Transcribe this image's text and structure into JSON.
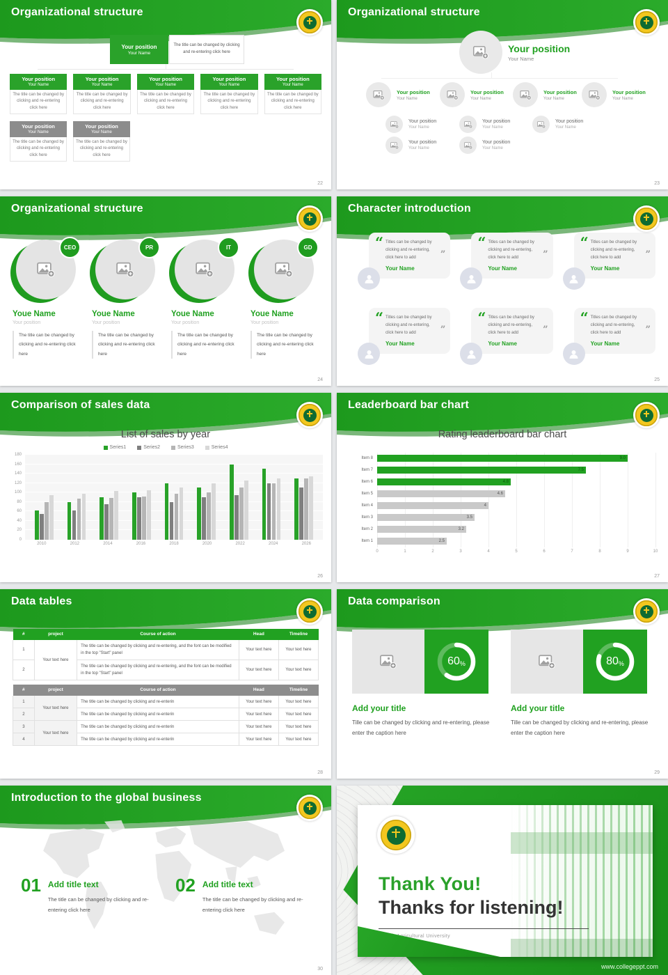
{
  "strings": {
    "your_position": "Your position",
    "your_name": "Your Name",
    "youe_name": "Youe Name",
    "org_body": "The title can be changed by clicking and re-entering click here",
    "quote_open": "“",
    "quote_close": "”",
    "quote_text": "Titles can be changed by clicking and re-entering, click here to add",
    "your_text_here": "Your text here",
    "course_long": "The title can be changed by clicking and re-entering, and the font can be modified in the top \"Start\" panel",
    "course_short": "The title can be changed by clicking and re-enterin",
    "caption29": "Tille can be changed by clicking and re-entering, please enter the caption here",
    "add_your_title": "Add your title",
    "add_title_text": "Add title text",
    "intro_caption": "The title can be changed by clicking and re-entering click here",
    "percent_sign": "%"
  },
  "slides": {
    "s22": {
      "title": "Organizational structure",
      "page": "22"
    },
    "s23": {
      "title": "Organizational structure",
      "page": "23"
    },
    "s24": {
      "title": "Organizational structure",
      "page": "24",
      "badges": [
        "CEO",
        "PR",
        "IT",
        "GD"
      ]
    },
    "s25": {
      "title": "Character introduction",
      "page": "25"
    },
    "s26": {
      "title": "Comparison of sales data",
      "page": "26"
    },
    "s27": {
      "title": "Leaderboard bar chart",
      "page": "27"
    },
    "s28": {
      "title": "Data tables",
      "page": "28",
      "headers": [
        "#",
        "project",
        "Course of action",
        "Head",
        "Timeline"
      ],
      "row_nums1": [
        "1",
        "2"
      ],
      "row_nums2": [
        "1",
        "2",
        "3",
        "4"
      ]
    },
    "s29": {
      "title": "Data comparison",
      "page": "29",
      "cards": [
        {
          "value": "60"
        },
        {
          "value": "80"
        }
      ]
    },
    "s30": {
      "title": "Introduction to the global business",
      "page": "30",
      "nums": [
        "01",
        "02"
      ]
    },
    "s31": {
      "heading": "Thank You!",
      "subheading": "Thanks for listening!",
      "org": "Punjab Agricultural University",
      "site": "www.collegeppt.com"
    }
  },
  "chart_data": [
    {
      "type": "bar",
      "title": "List of sales by year",
      "categories": [
        "2010",
        "2012",
        "2014",
        "2016",
        "2018",
        "2020",
        "2022",
        "2024",
        "2026"
      ],
      "series": [
        {
          "name": "Series1",
          "color": "#28a228",
          "values": [
            62,
            80,
            90,
            100,
            120,
            110,
            160,
            150,
            130
          ]
        },
        {
          "name": "Series2",
          "color": "#7f7f7f",
          "values": [
            55,
            62,
            75,
            90,
            80,
            90,
            95,
            120,
            110
          ]
        },
        {
          "name": "Series3",
          "color": "#b5b5b5",
          "values": [
            80,
            87,
            88,
            92,
            97,
            100,
            110,
            120,
            130
          ]
        },
        {
          "name": "Series4",
          "color": "#d8d8d8",
          "values": [
            95,
            98,
            103,
            105,
            110,
            120,
            125,
            130,
            135
          ]
        }
      ],
      "xlabel": "",
      "ylabel": "",
      "ylim": [
        0,
        180
      ],
      "ytick": 20,
      "grid": true,
      "legend_position": "top"
    },
    {
      "type": "bar-horizontal",
      "title": "Rating leaderboard bar chart",
      "categories": [
        "Item 8",
        "Item 7",
        "Item 6",
        "Item 5",
        "Item 4",
        "Item 3",
        "Item 2",
        "Item 1"
      ],
      "values": [
        9.0,
        7.5,
        4.8,
        4.6,
        4,
        3.5,
        3.2,
        2.5
      ],
      "labels": [
        "9.0",
        "7.5",
        "4.8",
        "4.6",
        "4",
        "3.5",
        "3.2",
        "2.5"
      ],
      "bar_colors": [
        "#21a121",
        "#21a121",
        "#21a121",
        "#c9c9c9",
        "#c9c9c9",
        "#c9c9c9",
        "#c9c9c9",
        "#c9c9c9"
      ],
      "xlabel": "",
      "ylabel": "",
      "xlim": [
        0,
        10
      ],
      "xtick": 1,
      "grid": true
    }
  ],
  "colors": {
    "brand_green": "#21a121",
    "banner_dark": "#0e7c0e",
    "gray_node": "#8c8c8c",
    "seal_yellow": "#f3c71f",
    "seal_green": "#0e6b32"
  }
}
